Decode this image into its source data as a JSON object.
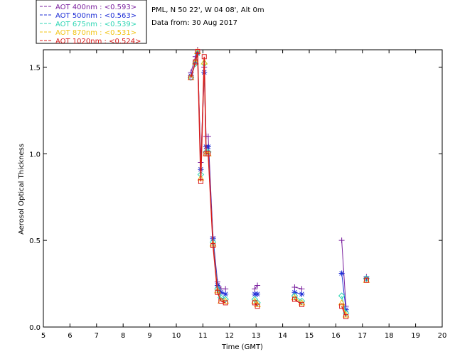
{
  "info": {
    "location": "PML, N 50 22', W 04 08', Alt 0m",
    "date_line": "Data from: 30 Aug 2017"
  },
  "chart_data": {
    "type": "line",
    "title": "",
    "xlabel": "Time (GMT)",
    "ylabel": "Aerosol Optical Thickness",
    "xlim": [
      5,
      20
    ],
    "ylim": [
      0,
      1.6
    ],
    "xticks": [
      5,
      6,
      7,
      8,
      9,
      10,
      11,
      12,
      13,
      14,
      15,
      16,
      17,
      18,
      19,
      20
    ],
    "yticks": [
      0.0,
      0.5,
      1.0,
      1.5
    ],
    "ytick_labels": [
      "0.0",
      "0.5",
      "1.0",
      "1.5"
    ],
    "x": [
      10.55,
      10.72,
      10.8,
      10.92,
      11.05,
      11.12,
      11.2,
      11.38,
      11.55,
      11.68,
      11.85,
      12.95,
      13.05,
      14.45,
      14.72,
      16.22,
      16.38,
      17.15
    ],
    "series": [
      {
        "name": "AOT  400nm : <0.593>",
        "color": "#7a1f9e",
        "marker": "plus",
        "values": [
          1.47,
          1.56,
          1.62,
          0.95,
          1.5,
          1.1,
          1.1,
          0.52,
          0.26,
          0.22,
          0.22,
          0.22,
          0.24,
          0.23,
          0.22,
          0.5,
          0.12,
          0.29
        ]
      },
      {
        "name": "AOT  500nm : <0.563>",
        "color": "#1f2fd6",
        "marker": "asterisk",
        "values": [
          1.45,
          1.53,
          1.58,
          0.91,
          1.47,
          1.04,
          1.04,
          0.51,
          0.24,
          0.2,
          0.19,
          0.19,
          0.19,
          0.2,
          0.19,
          0.31,
          0.1,
          0.28
        ]
      },
      {
        "name": "AOT  675nm : <0.539>",
        "color": "#2fd6b4",
        "marker": "diamond",
        "values": [
          1.44,
          1.52,
          1.58,
          0.88,
          1.52,
          1.01,
          1.01,
          0.49,
          0.22,
          0.17,
          0.16,
          0.16,
          0.14,
          0.18,
          0.15,
          0.18,
          0.08,
          0.28
        ]
      },
      {
        "name": "AOT  870nm : <0.531>",
        "color": "#f2c416",
        "marker": "triangle",
        "values": [
          1.44,
          1.53,
          1.59,
          0.86,
          1.53,
          1.0,
          1.0,
          0.48,
          0.21,
          0.15,
          0.15,
          0.15,
          0.13,
          0.17,
          0.14,
          0.14,
          0.07,
          0.27
        ]
      },
      {
        "name": "AOT 1020nm : <0.524>",
        "color": "#d81a1a",
        "marker": "square",
        "values": [
          1.44,
          1.53,
          1.59,
          0.84,
          1.56,
          1.0,
          1.0,
          0.47,
          0.2,
          0.15,
          0.14,
          0.14,
          0.12,
          0.16,
          0.13,
          0.12,
          0.06,
          0.27
        ]
      }
    ]
  }
}
